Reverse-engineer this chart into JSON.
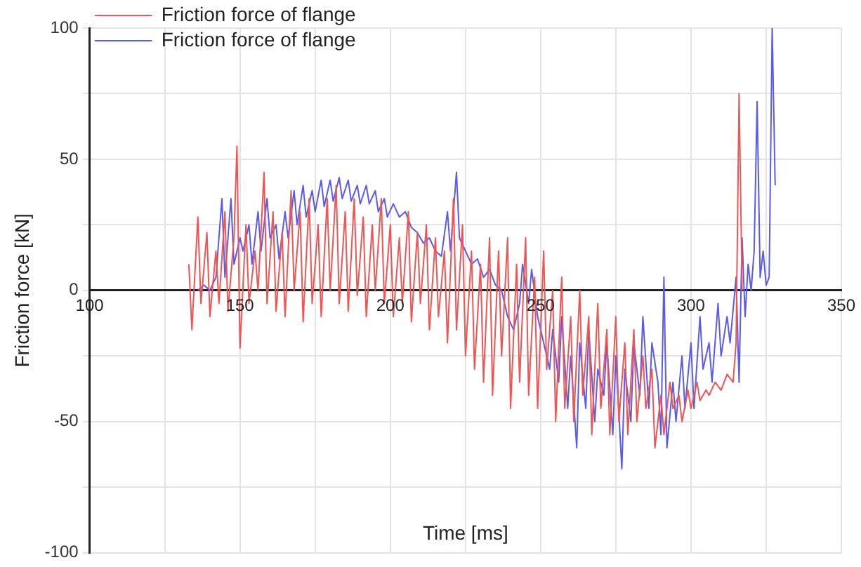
{
  "chart_data": {
    "type": "line",
    "xlabel": "Time [ms]",
    "ylabel": "Friction force [kN]",
    "xlim": [
      100,
      350
    ],
    "ylim": [
      -100,
      100
    ],
    "xticks": [
      100,
      {
        "value": 125,
        "label": null
      },
      150,
      {
        "value": 175,
        "label": null
      },
      200,
      {
        "value": 225,
        "label": null
      },
      250,
      {
        "value": 275,
        "label": null
      },
      300,
      {
        "value": 325,
        "label": null
      },
      350
    ],
    "yticks": [
      -100,
      {
        "value": -75,
        "label": null
      },
      -50,
      {
        "value": -25,
        "label": null
      },
      0,
      {
        "value": 25,
        "label": null
      },
      50,
      {
        "value": 75,
        "label": null
      },
      100
    ],
    "grid": true,
    "legend": "top left",
    "marker": "none",
    "line_style": "solid",
    "series": [
      {
        "name": "Friction force of flange",
        "color": "#f05454",
        "x": [
          133,
          134,
          136,
          137,
          139,
          140,
          142,
          143,
          145,
          146,
          148,
          149,
          150,
          152,
          153,
          155,
          156,
          158,
          159,
          161,
          162,
          164,
          165,
          167,
          168,
          170,
          171,
          173,
          174,
          176,
          177,
          179,
          180,
          182,
          183,
          185,
          186,
          188,
          189,
          191,
          192,
          194,
          195,
          197,
          198,
          200,
          201,
          203,
          204,
          206,
          207,
          209,
          210,
          212,
          213,
          215,
          216,
          218,
          219,
          221,
          222,
          224,
          225,
          227,
          228,
          230,
          231,
          233,
          234,
          236,
          237,
          239,
          240,
          242,
          243,
          245,
          246,
          248,
          249,
          251,
          252,
          254,
          255,
          257,
          258,
          260,
          261,
          263,
          264,
          266,
          267,
          269,
          270,
          272,
          273,
          275,
          276,
          278,
          279,
          281,
          282,
          284,
          285,
          287,
          288,
          290,
          291,
          293,
          294,
          296,
          297,
          299,
          300,
          302,
          303,
          305,
          306,
          308,
          310,
          312,
          314,
          315,
          316,
          317
        ],
        "values": [
          10,
          -15,
          28,
          -5,
          22,
          -10,
          15,
          -5,
          30,
          -8,
          20,
          55,
          -22,
          25,
          -5,
          15,
          0,
          45,
          -5,
          30,
          -8,
          22,
          -10,
          38,
          0,
          30,
          -12,
          35,
          -5,
          25,
          -10,
          35,
          0,
          40,
          -5,
          30,
          -8,
          35,
          -2,
          28,
          -10,
          25,
          0,
          35,
          -5,
          25,
          -10,
          20,
          -5,
          30,
          -12,
          22,
          -5,
          25,
          -15,
          20,
          -10,
          15,
          -20,
          35,
          -15,
          25,
          -25,
          15,
          -30,
          10,
          -35,
          20,
          -40,
          15,
          -25,
          20,
          -45,
          10,
          -35,
          20,
          -40,
          5,
          -45,
          15,
          -30,
          0,
          -50,
          5,
          -45,
          -10,
          -50,
          0,
          -40,
          -10,
          -55,
          -5,
          -45,
          -15,
          -55,
          -10,
          -50,
          -20,
          -55,
          -15,
          -50,
          -25,
          -45,
          -30,
          -60,
          -40,
          -55,
          -35,
          -45,
          -40,
          -50,
          -38,
          -45,
          -35,
          -42,
          -38,
          -40,
          -35,
          -38,
          -32,
          -35,
          -20,
          75,
          0
        ]
      },
      {
        "name": "Friction force of flange",
        "color": "#5a5af0",
        "x": [
          136,
          138,
          140,
          142,
          144,
          145,
          147,
          148,
          150,
          151,
          153,
          154,
          156,
          157,
          159,
          160,
          162,
          163,
          165,
          166,
          168,
          169,
          171,
          172,
          174,
          175,
          177,
          178,
          180,
          181,
          183,
          184,
          186,
          187,
          189,
          190,
          192,
          193,
          195,
          196,
          198,
          199,
          201,
          203,
          205,
          207,
          209,
          211,
          213,
          215,
          217,
          219,
          220,
          222,
          223,
          225,
          227,
          229,
          231,
          233,
          235,
          237,
          239,
          241,
          243,
          244,
          246,
          247,
          249,
          251,
          253,
          254,
          256,
          257,
          259,
          260,
          262,
          263,
          265,
          266,
          268,
          269,
          271,
          272,
          274,
          275,
          277,
          278,
          280,
          281,
          283,
          284,
          286,
          287,
          289,
          290,
          291,
          292,
          294,
          295,
          297,
          298,
          300,
          301,
          303,
          304,
          306,
          307,
          309,
          310,
          312,
          313,
          315,
          316,
          317,
          318,
          319,
          320,
          321,
          322,
          323,
          324,
          325,
          326,
          327,
          328
        ],
        "values": [
          0,
          2,
          0,
          5,
          35,
          5,
          35,
          10,
          20,
          15,
          25,
          10,
          30,
          15,
          35,
          20,
          25,
          12,
          30,
          20,
          38,
          25,
          40,
          28,
          38,
          30,
          42,
          32,
          42,
          34,
          43,
          35,
          42,
          34,
          40,
          33,
          40,
          33,
          38,
          30,
          35,
          28,
          33,
          28,
          30,
          24,
          22,
          18,
          20,
          15,
          13,
          30,
          15,
          45,
          20,
          15,
          10,
          12,
          5,
          8,
          2,
          0,
          -10,
          -15,
          -5,
          10,
          -5,
          8,
          -10,
          -20,
          -30,
          -15,
          -35,
          -10,
          -45,
          -25,
          -60,
          -20,
          -45,
          -15,
          -50,
          -30,
          -40,
          -20,
          -55,
          -25,
          -68,
          -30,
          -50,
          -20,
          -40,
          -10,
          -45,
          -20,
          -35,
          -55,
          5,
          -60,
          -35,
          -50,
          -25,
          -45,
          -20,
          -45,
          -10,
          -30,
          -20,
          -35,
          -5,
          -25,
          -10,
          -20,
          5,
          -35,
          20,
          -10,
          10,
          0,
          15,
          72,
          5,
          15,
          2,
          5,
          100,
          40
        ]
      }
    ]
  }
}
